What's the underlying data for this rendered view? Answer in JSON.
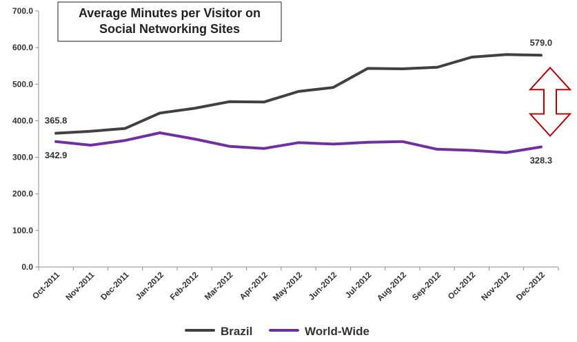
{
  "chart_data": {
    "type": "line",
    "title_lines": [
      "Average Minutes per Visitor on",
      "Social Networking Sites"
    ],
    "categories": [
      "Oct-2011",
      "Nov-2011",
      "Dec-2011",
      "Jan-2012",
      "Feb-2012",
      "Mar-2012",
      "Apr-2012",
      "May-2012",
      "Jun-2012",
      "Jul-2012",
      "Aug-2012",
      "Sep-2012",
      "Oct-2012",
      "Nov-2012",
      "Dec-2012"
    ],
    "ylim": [
      0,
      700
    ],
    "yticks": [
      "0.0",
      "100.0",
      "200.0",
      "300.0",
      "400.0",
      "500.0",
      "600.0",
      "700.0"
    ],
    "grid": false,
    "legend_position": "bottom",
    "series": [
      {
        "name": "Brazil",
        "color": "#404040",
        "values": [
          365.8,
          371,
          379,
          421,
          434,
          452,
          451,
          480,
          491,
          543,
          542,
          546,
          574,
          581,
          579.0
        ]
      },
      {
        "name": "World-Wide",
        "color": "#7030a0",
        "values": [
          342.9,
          333,
          346,
          367,
          350,
          330,
          324,
          340,
          336,
          341,
          343,
          322,
          319,
          313,
          328.3
        ]
      }
    ],
    "data_labels": [
      {
        "series": 0,
        "index": 0,
        "text": "365.8"
      },
      {
        "series": 1,
        "index": 0,
        "text": "342.9"
      },
      {
        "series": 0,
        "index": 14,
        "text": "579.0"
      },
      {
        "series": 1,
        "index": 14,
        "text": "328.3"
      }
    ],
    "annotation": {
      "type": "double-arrow",
      "color": "#c00000",
      "between_values": [
        579.0,
        328.3
      ]
    }
  }
}
